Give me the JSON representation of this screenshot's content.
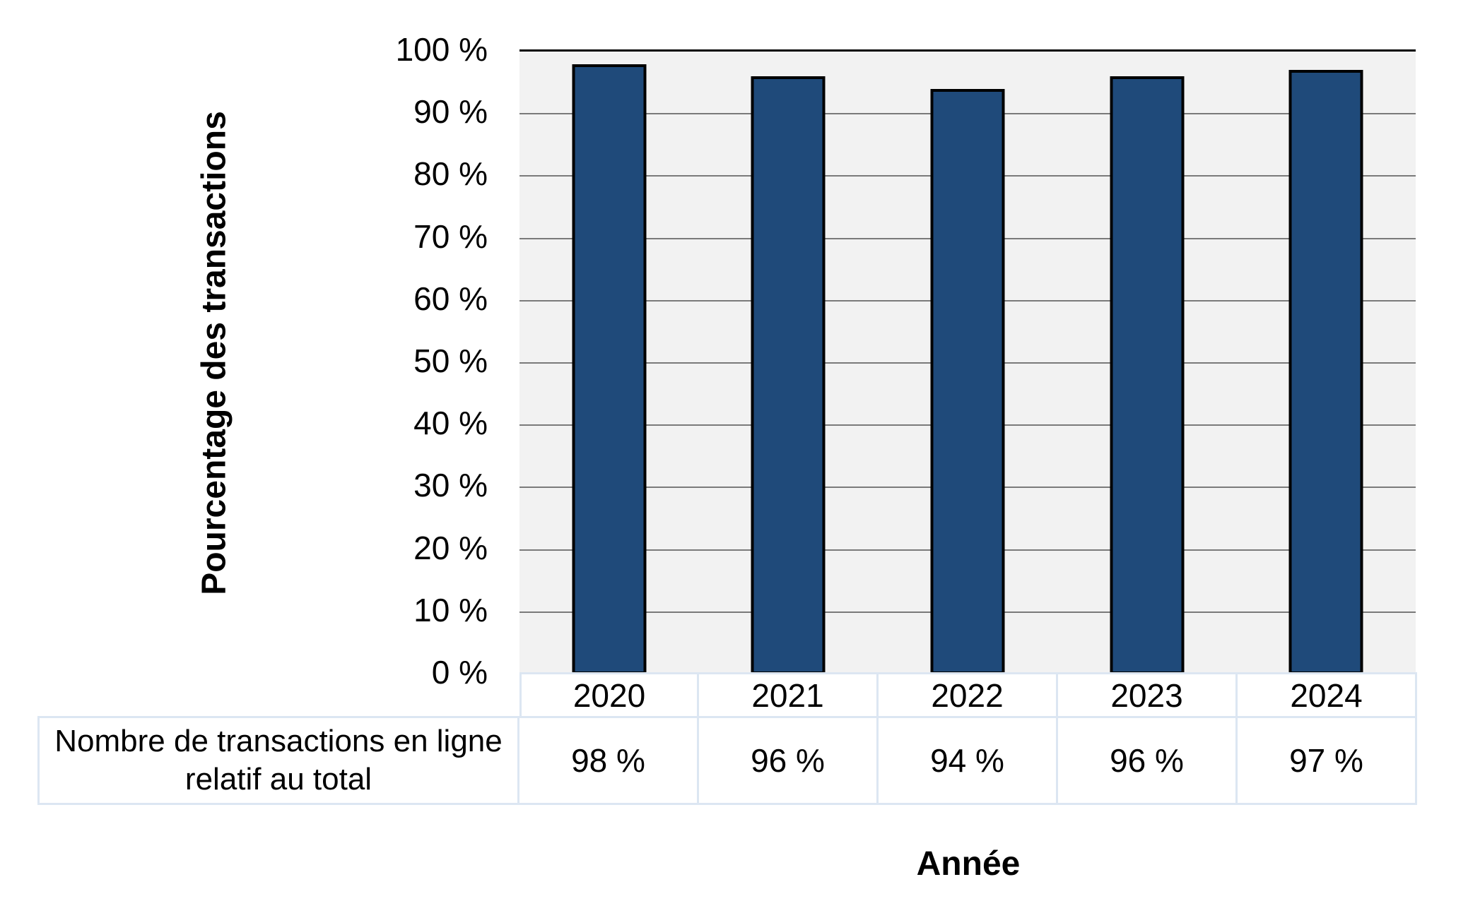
{
  "chart_data": {
    "type": "bar",
    "title": "",
    "categories": [
      "2020",
      "2021",
      "2022",
      "2023",
      "2024"
    ],
    "series": [
      {
        "name": "Nombre de transactions en ligne relatif au total",
        "values": [
          98,
          96,
          94,
          96,
          97
        ]
      }
    ],
    "xlabel": "Année",
    "ylabel": "Pourcentage des transactions",
    "ylim": [
      0,
      100
    ],
    "y_tick_labels": [
      "0 %",
      "10 %",
      "20 %",
      "30 %",
      "40 %",
      "50 %",
      "60 %",
      "70 %",
      "80 %",
      "90 %",
      "100 %"
    ],
    "grid": true,
    "legend": false,
    "colors": {
      "bar_fill": "#1F4A7A",
      "bar_border": "#000000",
      "plot_background": "#F2F2F2",
      "gridline": "#7A7A7A",
      "table_border": "#DCE6F2"
    },
    "data_table": {
      "row_label": "Nombre de transactions en ligne relatif au total",
      "row_label_lines": [
        "Nombre de transactions en ligne",
        "relatif au total"
      ],
      "columns": [
        "2020",
        "2021",
        "2022",
        "2023",
        "2024"
      ],
      "values": [
        "98 %",
        "96 %",
        "94 %",
        "96 %",
        "97 %"
      ]
    }
  }
}
